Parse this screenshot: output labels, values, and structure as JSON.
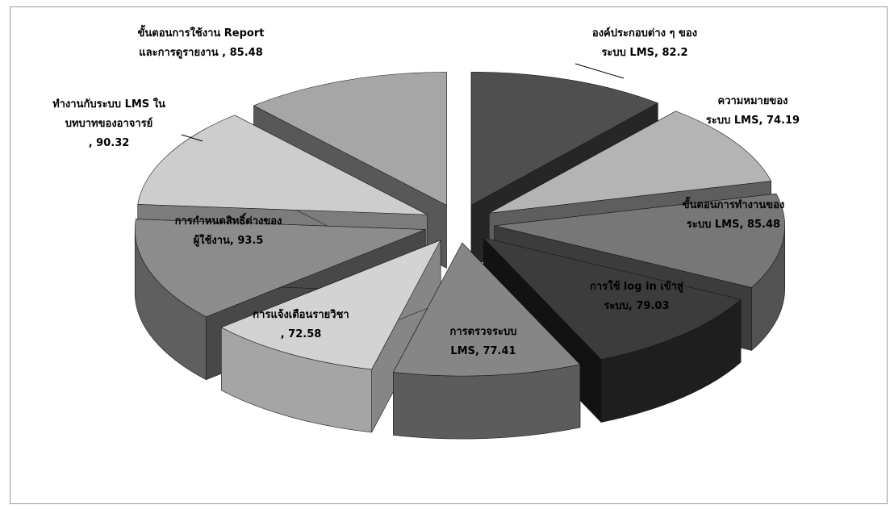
{
  "chart_data": {
    "type": "pie",
    "style": "3d-exploded",
    "legend": "none",
    "categories": [
      "องค์ประกอบต่าง ๆ ของระบบ LMS",
      "ความหมายของระบบ LMS",
      "ขั้นตอนการทำงานของระบบ LMS",
      "การใช้ log in เข้าสู่ระบบ",
      "การตรวจระบบ LMS",
      "การแจ้งเตือนรายวิชา",
      "การกำหนดสิทธิ์ต่างของผู้ใช้งาน",
      "ทำงานกับระบบ LMS ในบทบาทของอาจารย์",
      "ขั้นตอนการใช้งาน Report และการดูรายงาน"
    ],
    "values": [
      82.2,
      74.19,
      85.48,
      79.03,
      77.41,
      72.58,
      93.5,
      90.32,
      85.48
    ],
    "labels": [
      [
        "องค์ประกอบต่าง ๆ ของ",
        "ระบบ LMS, 82.2"
      ],
      [
        "ความหมายของ",
        "ระบบ LMS, 74.19"
      ],
      [
        "ขั้นตอนการทำงานของ",
        "ระบบ LMS, 85.48"
      ],
      [
        "การใช้ log in เข้าสู่",
        "ระบบ, 79.03"
      ],
      [
        "การตรวจระบบ",
        "LMS, 77.41"
      ],
      [
        "การแจ้งเตือนรายวิชา",
        ", 72.58"
      ],
      [
        "การกำหนดสิทธิ์ต่างของ",
        "ผู้ใช้งาน, 93.5"
      ],
      [
        "ทำงานกับระบบ LMS ใน",
        "บทบาทของอาจารย์",
        ", 90.32"
      ],
      [
        "ขั้นตอนการใช้งาน Report",
        "และการดูรายงาน   , 85.48"
      ]
    ],
    "colors": {
      "top": [
        "#4f4f4f",
        "#b4b4b4",
        "#777777",
        "#3c3c3c",
        "#868686",
        "#d3d3d3",
        "#8c8c8c",
        "#cdcdcd",
        "#a6a6a6"
      ],
      "side": [
        "#343434",
        "#7b7b7b",
        "#525252",
        "#1e1e1e",
        "#5c5c5c",
        "#a5a5a5",
        "#5f5f5f",
        "#9d9d9d",
        "#747474"
      ],
      "dark": [
        "#262626",
        "#5e5e5e",
        "#3c3c3c",
        "#121212",
        "#444444",
        "#868686",
        "#484848",
        "#7c7c7c",
        "#585858"
      ]
    }
  }
}
